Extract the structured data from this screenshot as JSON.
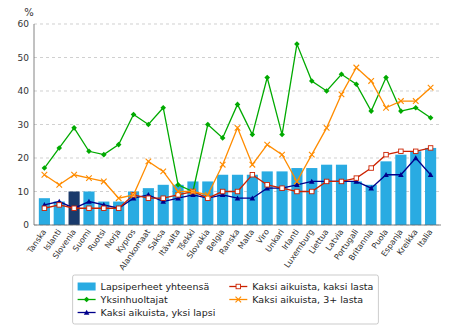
{
  "chart_data": {
    "type": "bar",
    "ylabel": "%",
    "categories": [
      "Tanska",
      "Islanti",
      "Slovenia",
      "Suomi",
      "Ruotsi",
      "Norja",
      "Kypros",
      "Alankomaat",
      "Saksa",
      "Itävalta",
      "Tšekki",
      "Slovakia",
      "Belgia",
      "Ranska",
      "Malta",
      "Viro",
      "Unkari",
      "Irlanti",
      "Luxemburg",
      "Liettua",
      "Latvia",
      "Portugali",
      "Britannia",
      "Puola",
      "Espanja",
      "Kreikka",
      "Italia"
    ],
    "series": [
      {
        "name": "Lapsiperheet yhteensä",
        "type": "bar",
        "colors": [
          "#29ABE2",
          "#29ABE2",
          "#1A3A6B",
          "#29ABE2",
          "#29ABE2",
          "#29ABE2",
          "#29ABE2",
          "#29ABE2",
          "#29ABE2",
          "#29ABE2",
          "#29ABE2",
          "#29ABE2",
          "#29ABE2",
          "#29ABE2",
          "#29ABE2",
          "#29ABE2",
          "#29ABE2",
          "#29ABE2",
          "#29ABE2",
          "#29ABE2",
          "#29ABE2",
          "#29ABE2",
          "#29ABE2",
          "#29ABE2",
          "#29ABE2",
          "#29ABE2",
          "#29ABE2"
        ],
        "values": [
          8,
          7,
          10,
          10,
          7,
          7,
          10,
          11,
          12,
          12,
          13,
          13,
          15,
          15,
          15,
          16,
          16,
          17,
          17,
          18,
          18,
          13,
          12,
          19,
          21,
          22,
          23
        ]
      },
      {
        "name": "Yksinhuoltajat",
        "type": "line",
        "color": "#00AA00",
        "marker": "diamond",
        "values": [
          17,
          23,
          29,
          22,
          21,
          24,
          33,
          30,
          35,
          12,
          10,
          30,
          26,
          36,
          27,
          44,
          27,
          54,
          43,
          40,
          45,
          42,
          34,
          44,
          34,
          35,
          32
        ]
      },
      {
        "name": "Kaksi aikuista, yksi lapsi",
        "type": "line",
        "color": "#00008B",
        "marker": "triangle",
        "values": [
          6,
          7,
          5,
          7,
          6,
          5,
          8,
          9,
          7,
          8,
          9,
          8,
          9,
          8,
          8,
          11,
          11,
          12,
          13,
          13,
          13,
          13,
          11,
          15,
          15,
          20,
          15
        ]
      },
      {
        "name": "Kaksi aikuista, kaksi lasta",
        "type": "line",
        "color": "#CC2200",
        "marker": "square-open",
        "values": [
          5,
          6,
          5,
          5,
          5,
          5,
          9,
          8,
          8,
          9,
          10,
          8,
          10,
          10,
          15,
          12,
          11,
          10,
          10,
          13,
          13,
          14,
          17,
          21,
          22,
          22,
          23
        ]
      },
      {
        "name": "Kaksi aikuista, 3+ lasta",
        "type": "line",
        "color": "#FF8C00",
        "marker": "x",
        "values": [
          15,
          12,
          15,
          14,
          13,
          8,
          9,
          19,
          16,
          10,
          10,
          9,
          18,
          29,
          18,
          24,
          21,
          13,
          21,
          29,
          39,
          47,
          43,
          35,
          37,
          37,
          41
        ]
      }
    ],
    "ylim": [
      0,
      60
    ],
    "yticks": [
      0,
      10,
      20,
      30,
      40,
      50,
      60
    ],
    "grid": true,
    "legend": "bottom"
  }
}
